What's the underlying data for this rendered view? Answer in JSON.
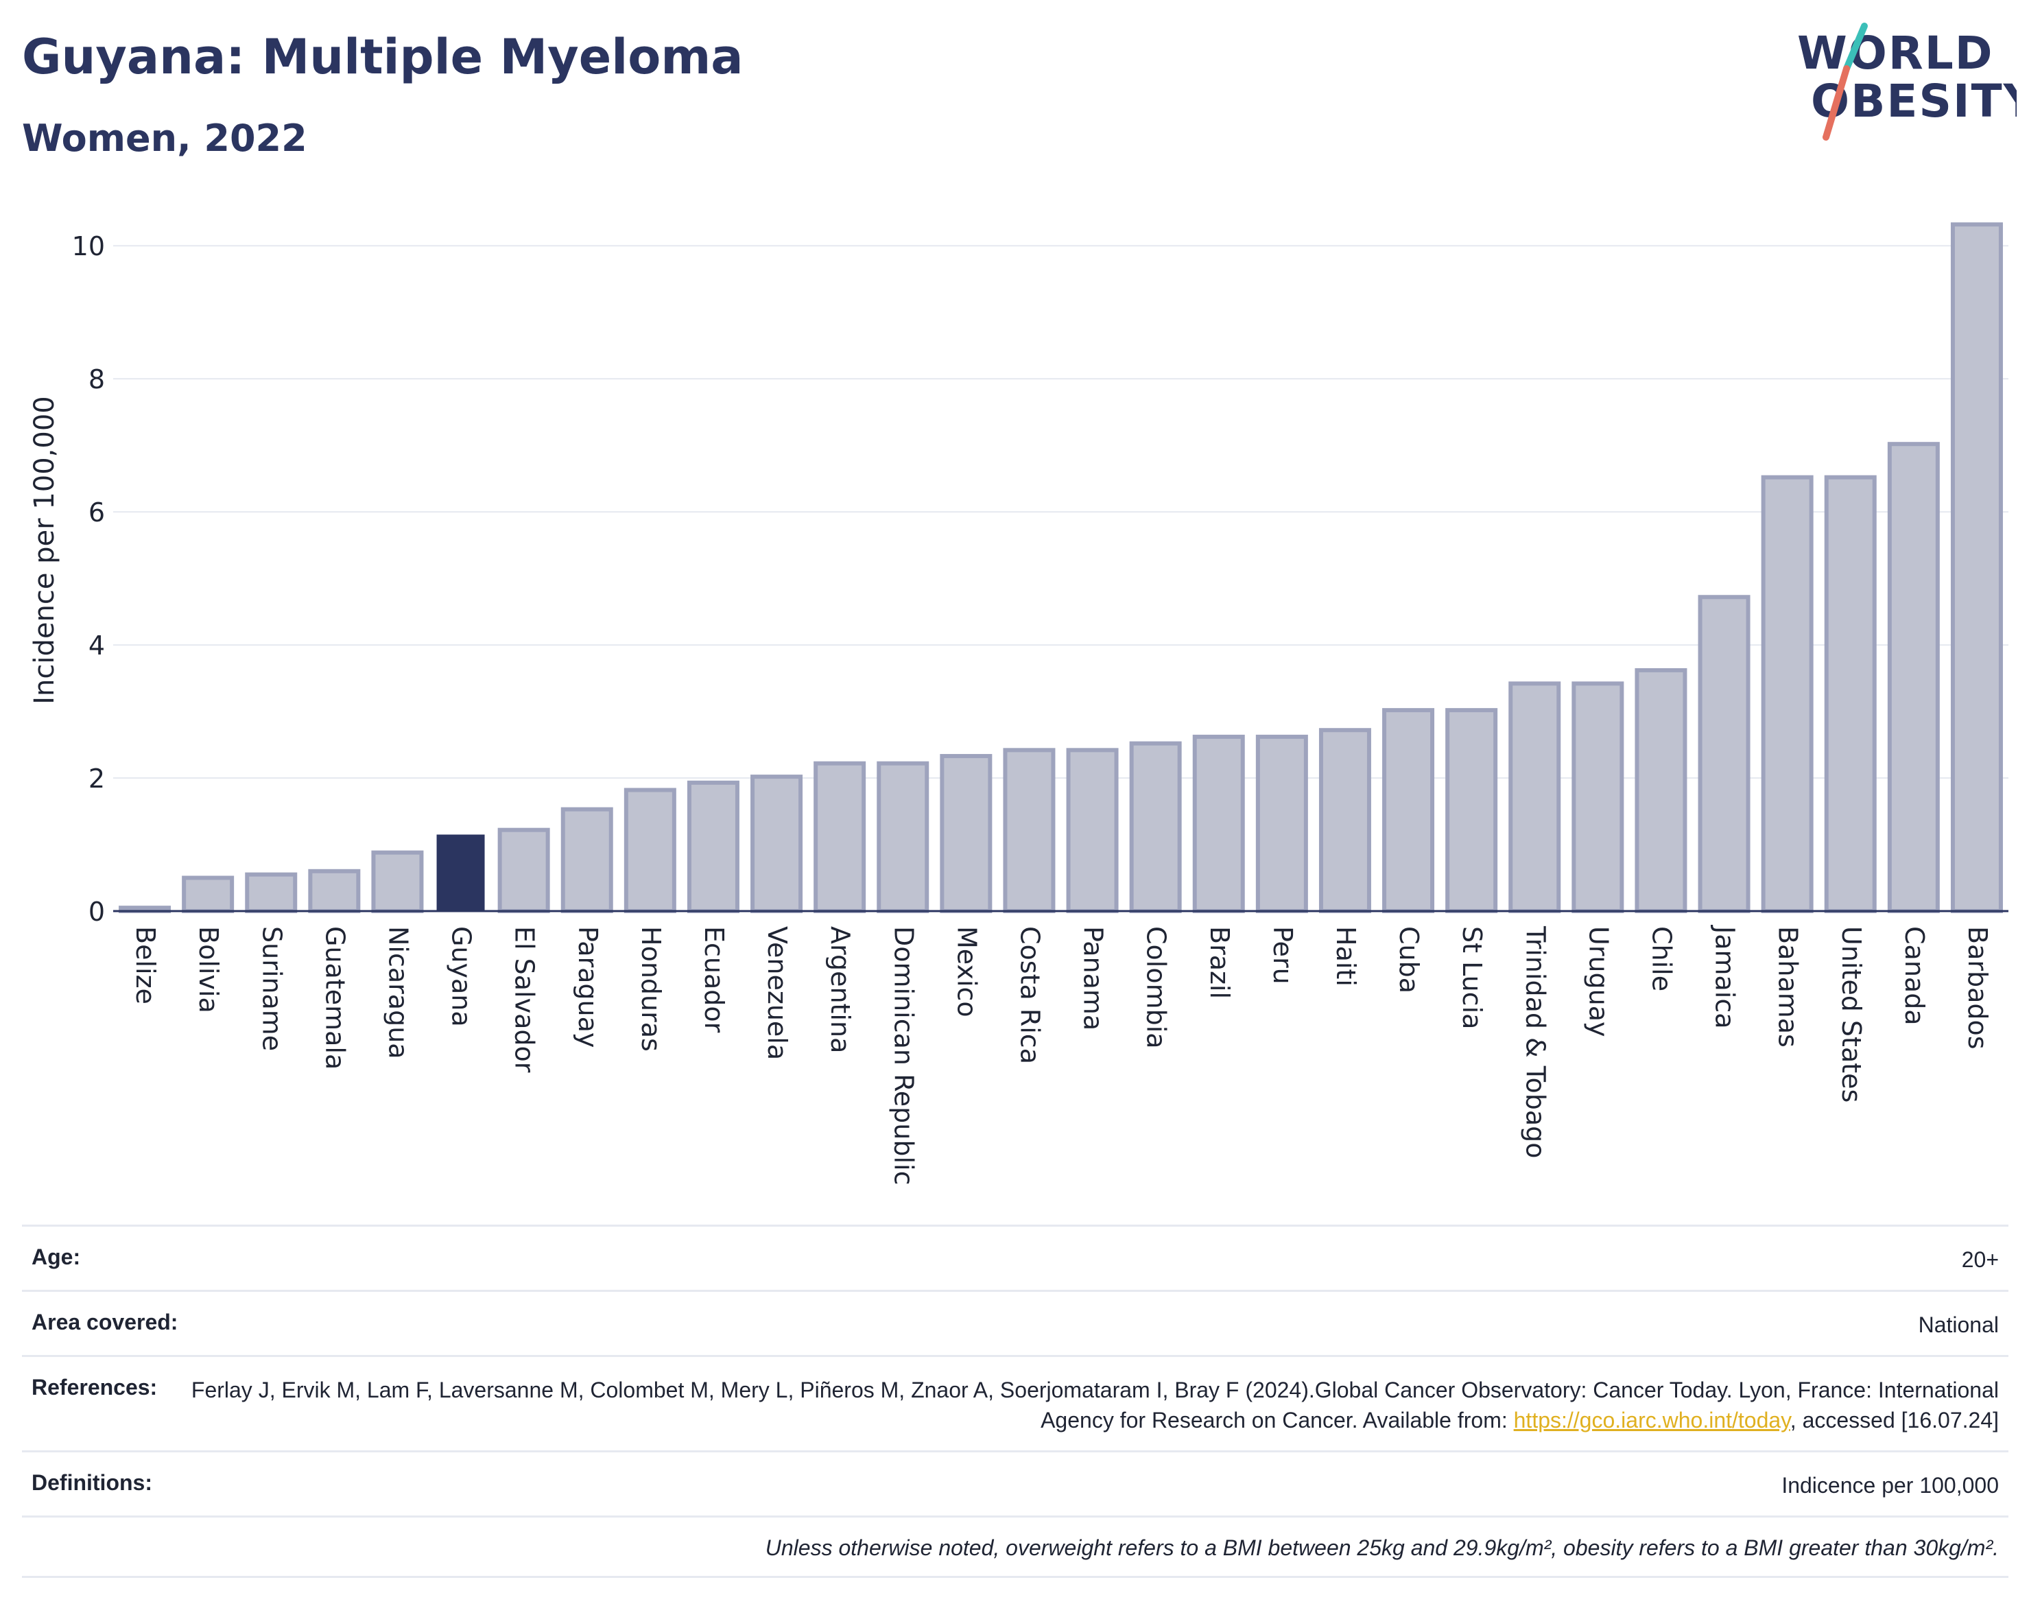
{
  "header": {
    "title": "Guyana: Multiple Myeloma",
    "subtitle": "Women, 2022",
    "logo_line1": "WORLD",
    "logo_line2": "OBESITY"
  },
  "colors": {
    "bar": "#bfc2d0",
    "bar_stroke": "#9ea3bd",
    "highlight": "#2b3560",
    "grid": "#e6e9f0",
    "axis": "#2b3560"
  },
  "chart_data": {
    "type": "bar",
    "ylabel": "Incidence per 100,000",
    "ylim": [
      0,
      10.6
    ],
    "yticks": [
      0,
      2,
      4,
      6,
      8,
      10
    ],
    "highlight": "Guyana",
    "categories": [
      "Belize",
      "Bolivia",
      "Suriname",
      "Guatemala",
      "Nicaragua",
      "Guyana",
      "El Salvador",
      "Paraguay",
      "Honduras",
      "Ecuador",
      "Venezuela",
      "Argentina",
      "Dominican Republic",
      "Mexico",
      "Costa Rica",
      "Panama",
      "Colombia",
      "Brazil",
      "Peru",
      "Haiti",
      "Cuba",
      "St Lucia",
      "Trinidad & Tobago",
      "Uruguay",
      "Chile",
      "Jamaica",
      "Bahamas",
      "United States",
      "Canada",
      "Barbados"
    ],
    "values": [
      0.05,
      0.5,
      0.55,
      0.6,
      0.88,
      1.15,
      1.22,
      1.53,
      1.82,
      1.93,
      2.02,
      2.22,
      2.22,
      2.33,
      2.42,
      2.42,
      2.52,
      2.62,
      2.62,
      2.72,
      3.02,
      3.02,
      3.42,
      3.42,
      3.62,
      4.72,
      6.52,
      6.52,
      7.02,
      10.32
    ],
    "grid": true
  },
  "info": {
    "age_label": "Age:",
    "age_value": "20+",
    "area_label": "Area covered:",
    "area_value": "National",
    "references_label": "References:",
    "references_text": "Ferlay J, Ervik M, Lam F, Laversanne M, Colombet M, Mery L, Piñeros M, Znaor A, Soerjomataram I, Bray F (2024).Global Cancer Observatory: Cancer Today. Lyon, France: International Agency for Research on Cancer. Available from:",
    "references_link": "https://gco.iarc.who.int/today",
    "references_suffix": ", accessed [16.07.24]",
    "definitions_label": "Definitions:",
    "definitions_value": "Indicence per 100,000",
    "note": "Unless otherwise noted, overweight refers to a BMI between 25kg and 29.9kg/m², obesity refers to a BMI greater than 30kg/m²."
  }
}
